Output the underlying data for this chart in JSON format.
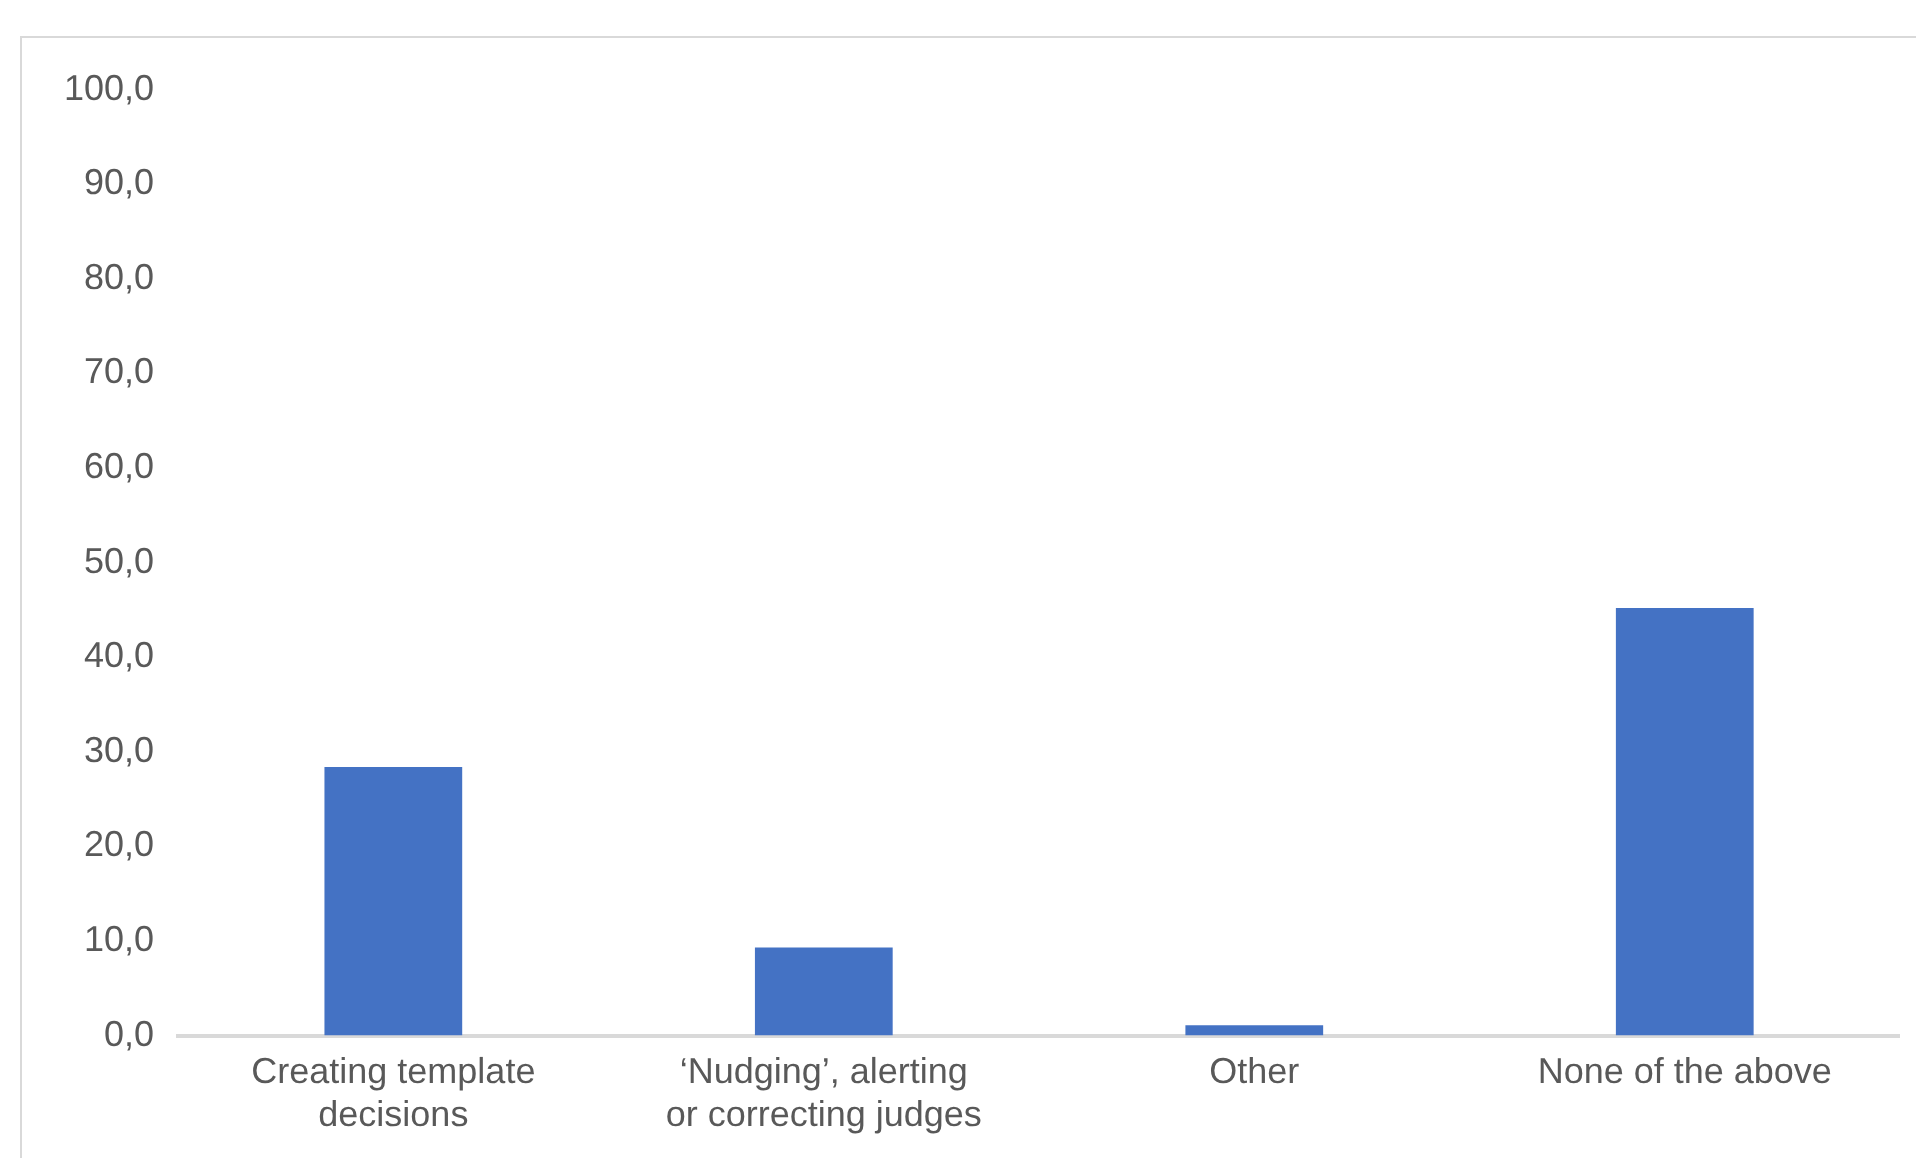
{
  "chart_data": {
    "type": "bar",
    "categories": [
      "Creating template decisions",
      "‘Nudging’, alerting or correcting judges",
      "Other",
      "None of the above"
    ],
    "values": [
      28.4,
      9.3,
      1.1,
      45.2
    ],
    "color": "#4472c4",
    "ylim": [
      0,
      100
    ],
    "yticks": [
      {
        "value": 0,
        "label": "0,0"
      },
      {
        "value": 10,
        "label": "10,0"
      },
      {
        "value": 20,
        "label": "20,0"
      },
      {
        "value": 30,
        "label": "30,0"
      },
      {
        "value": 40,
        "label": "40,0"
      },
      {
        "value": 50,
        "label": "50,0"
      },
      {
        "value": 60,
        "label": "60,0"
      },
      {
        "value": 70,
        "label": "70,0"
      },
      {
        "value": 80,
        "label": "80,0"
      },
      {
        "value": 90,
        "label": "90,0"
      },
      {
        "value": 100,
        "label": "100,0"
      }
    ],
    "grid": false,
    "legend": false
  }
}
